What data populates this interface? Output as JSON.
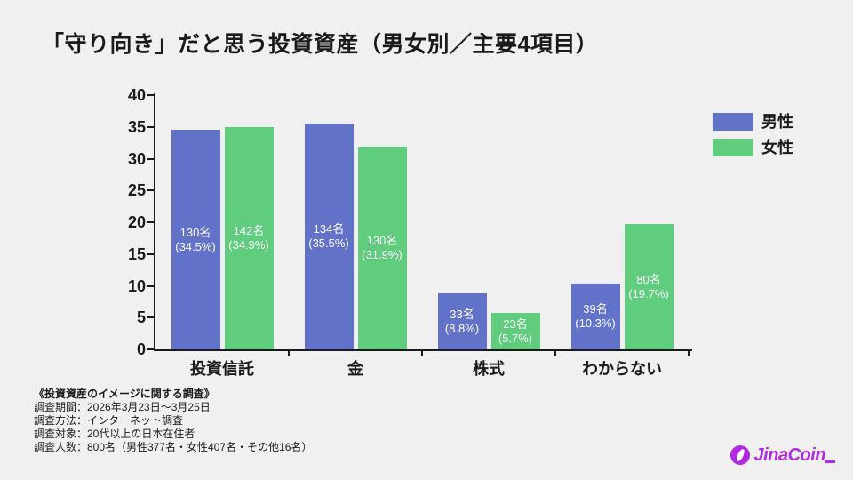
{
  "title": "「守り向き」だと思う投資資産（男女別／主要4項目）",
  "chart_data": {
    "type": "bar",
    "title": "「守り向き」だと思う投資資産（男女別／主要4項目）",
    "categories": [
      "投資信託",
      "金",
      "株式",
      "わからない"
    ],
    "series": [
      {
        "name": "男性",
        "color": "#6272c8",
        "values": [
          34.5,
          35.5,
          8.8,
          10.3
        ],
        "counts": [
          130,
          134,
          33,
          39
        ],
        "bar_labels": [
          {
            "count": "130名",
            "pct": "(34.5%)"
          },
          {
            "count": "134名",
            "pct": "(35.5%)"
          },
          {
            "count": "33名",
            "pct": "(8.8%)"
          },
          {
            "count": "39名",
            "pct": "(10.3%)"
          }
        ]
      },
      {
        "name": "女性",
        "color": "#5fcc7e",
        "values": [
          34.9,
          31.9,
          5.7,
          19.7
        ],
        "counts": [
          142,
          130,
          23,
          80
        ],
        "bar_labels": [
          {
            "count": "142名",
            "pct": "(34.9%)"
          },
          {
            "count": "130名",
            "pct": "(31.9%)"
          },
          {
            "count": "23名",
            "pct": "(5.7%)"
          },
          {
            "count": "80名",
            "pct": "(19.7%)"
          }
        ]
      }
    ],
    "xlabel": "",
    "ylabel": "",
    "ylim": [
      0,
      40
    ],
    "yticks": [
      0,
      5,
      10,
      15,
      20,
      25,
      30,
      35,
      40
    ],
    "grid": false,
    "legend_position": "top-right"
  },
  "legend": {
    "items": [
      {
        "label": "男性",
        "color": "#6272c8"
      },
      {
        "label": "女性",
        "color": "#5fcc7e"
      }
    ]
  },
  "footnote": {
    "heading": "《投資資産のイメージに関する調査》",
    "lines": [
      "調査期間：2026年3月23日～3月25日",
      "調査方法：インターネット調査",
      "調査対象：20代以上の日本在住者",
      "調査人数：800名（男性377名・女性407名・その他16名）"
    ]
  },
  "logo": {
    "text": "JinaCoin",
    "color": "#b02be0"
  },
  "colors": {
    "background": "#f0f0f1",
    "axis": "#1a1a1a",
    "bar_label_text": "#ffffff"
  }
}
